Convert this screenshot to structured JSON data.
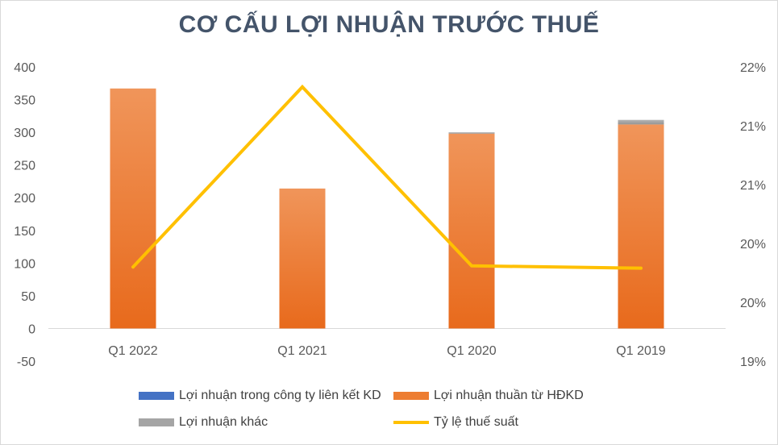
{
  "chart_data": {
    "type": "bar",
    "title": "CƠ CẤU LỢI NHUẬN TRƯỚC THUẾ",
    "categories": [
      "Q1 2022",
      "Q1 2021",
      "Q1 2020",
      "Q1 2019"
    ],
    "series": [
      {
        "name": "Lợi nhuận trong công ty liên kết KD",
        "type": "bar",
        "axis": "left",
        "values": [
          0,
          0,
          0,
          0
        ],
        "color": "#4472c4"
      },
      {
        "name": "Lợi nhuận thuần từ HĐKD",
        "type": "bar",
        "axis": "left",
        "values": [
          367,
          214,
          298,
          312
        ],
        "color": "#ed7d31"
      },
      {
        "name": "Lợi nhuận khác",
        "type": "bar",
        "axis": "left",
        "values": [
          0,
          0,
          2,
          7
        ],
        "color": "#a5a5a5"
      },
      {
        "name": "Tỷ lệ thuế suất",
        "type": "line",
        "axis": "right",
        "values": [
          20.3,
          21.83,
          20.31,
          20.29
        ],
        "color": "#ffc000"
      }
    ],
    "ylim": [
      -50,
      400
    ],
    "yticks": [
      "-50",
      "0",
      "50",
      "100",
      "150",
      "200",
      "250",
      "300",
      "350",
      "400"
    ],
    "y2lim": [
      19.5,
      22.0
    ],
    "y2ticks": [
      "19%",
      "20%",
      "20%",
      "21%",
      "21%",
      "22%"
    ],
    "legend_position": "bottom",
    "grid": false
  }
}
